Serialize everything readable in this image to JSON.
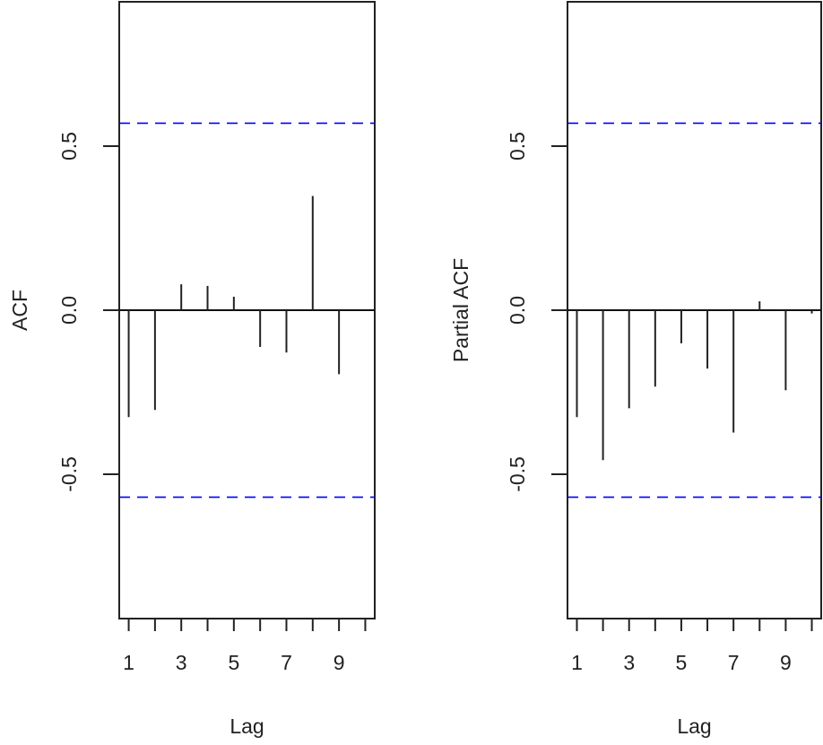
{
  "chart_data": [
    {
      "type": "bar",
      "subtype": "acf-lollipop",
      "title": "",
      "xlabel": "Lag",
      "ylabel": "ACF",
      "x": [
        1,
        2,
        3,
        4,
        5,
        6,
        7,
        8,
        9,
        10
      ],
      "values": [
        -0.326,
        -0.304,
        0.079,
        0.074,
        0.041,
        -0.112,
        -0.129,
        0.348,
        -0.195,
        0.003
      ],
      "confidence_bounds": [
        -0.57,
        0.57
      ],
      "confidence_color": "#0000ff",
      "xlim": [
        0.64,
        10.36
      ],
      "ylim": [
        -0.94,
        0.94
      ],
      "xticks": [
        1,
        2,
        3,
        4,
        5,
        6,
        7,
        8,
        9,
        10
      ],
      "xtick_labels": [
        "1",
        "",
        "3",
        "",
        "5",
        "",
        "7",
        "",
        "9",
        ""
      ],
      "yticks": [
        -0.5,
        0.0,
        0.5
      ],
      "ytick_labels": [
        "-0.5",
        "0.0",
        "0.5"
      ]
    },
    {
      "type": "bar",
      "subtype": "pacf-lollipop",
      "title": "",
      "xlabel": "Lag",
      "ylabel": "Partial ACF",
      "x": [
        1,
        2,
        3,
        4,
        5,
        6,
        7,
        8,
        9,
        10
      ],
      "values": [
        -0.326,
        -0.457,
        -0.299,
        -0.233,
        -0.101,
        -0.178,
        -0.373,
        0.027,
        -0.244,
        -0.01
      ],
      "confidence_bounds": [
        -0.57,
        0.57
      ],
      "confidence_color": "#0000ff",
      "xlim": [
        0.64,
        10.36
      ],
      "ylim": [
        -0.94,
        0.94
      ],
      "xticks": [
        1,
        2,
        3,
        4,
        5,
        6,
        7,
        8,
        9,
        10
      ],
      "xtick_labels": [
        "1",
        "",
        "3",
        "",
        "5",
        "",
        "7",
        "",
        "9",
        ""
      ],
      "yticks": [
        -0.5,
        0.0,
        0.5
      ],
      "ytick_labels": [
        "-0.5",
        "0.0",
        "0.5"
      ]
    }
  ]
}
